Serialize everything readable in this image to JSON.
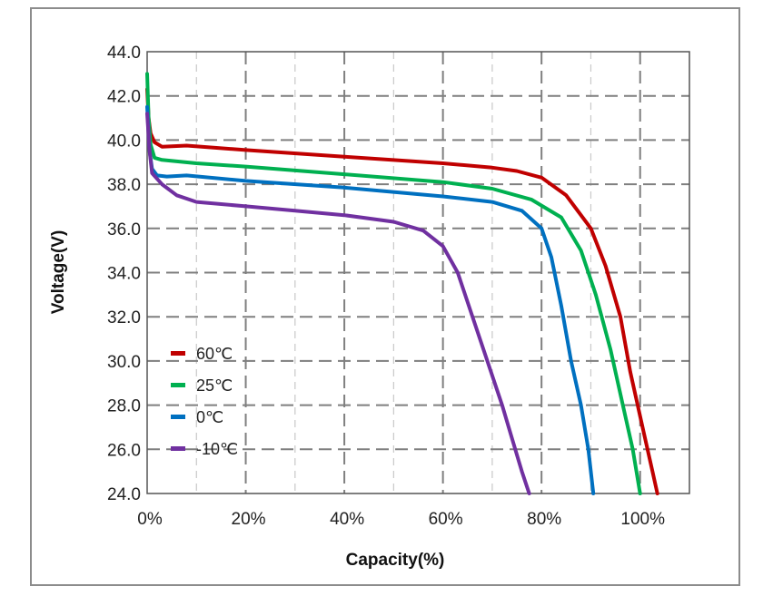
{
  "chart_data": {
    "type": "line",
    "title": "",
    "xlabel": "Capacity(%)",
    "ylabel": "Voltage(V)",
    "xlim": [
      0,
      110
    ],
    "ylim": [
      24,
      44
    ],
    "x_ticks": [
      "0%",
      "20%",
      "40%",
      "60%",
      "80%",
      "100%"
    ],
    "y_ticks": [
      "24.0",
      "26.0",
      "28.0",
      "30.0",
      "32.0",
      "34.0",
      "36.0",
      "38.0",
      "40.0",
      "42.0",
      "44.0"
    ],
    "grid": true,
    "legend_position": "lower-left",
    "series": [
      {
        "name": "60℃",
        "color": "#c00000",
        "points": [
          [
            0,
            42.3
          ],
          [
            0.3,
            41.0
          ],
          [
            0.7,
            40.3
          ],
          [
            1.5,
            39.9
          ],
          [
            3,
            39.7
          ],
          [
            8,
            39.75
          ],
          [
            20,
            39.55
          ],
          [
            40,
            39.25
          ],
          [
            60,
            38.95
          ],
          [
            70,
            38.75
          ],
          [
            75,
            38.6
          ],
          [
            80,
            38.3
          ],
          [
            85,
            37.5
          ],
          [
            90,
            36.0
          ],
          [
            93,
            34.3
          ],
          [
            96,
            32.0
          ],
          [
            98,
            29.5
          ],
          [
            100.5,
            27.0
          ],
          [
            102.5,
            25.0
          ],
          [
            103.5,
            24.0
          ]
        ]
      },
      {
        "name": "25℃",
        "color": "#00b050",
        "points": [
          [
            0,
            43.0
          ],
          [
            0.3,
            41.0
          ],
          [
            0.7,
            39.8
          ],
          [
            1.5,
            39.2
          ],
          [
            3,
            39.1
          ],
          [
            10,
            38.95
          ],
          [
            20,
            38.8
          ],
          [
            40,
            38.45
          ],
          [
            60,
            38.1
          ],
          [
            70,
            37.8
          ],
          [
            78,
            37.3
          ],
          [
            84,
            36.5
          ],
          [
            88,
            35.0
          ],
          [
            91,
            33.0
          ],
          [
            94,
            30.5
          ],
          [
            96.5,
            28.0
          ],
          [
            98.5,
            26.0
          ],
          [
            100,
            24.0
          ]
        ]
      },
      {
        "name": "0℃",
        "color": "#0070c0",
        "points": [
          [
            0,
            41.5
          ],
          [
            0.5,
            39.5
          ],
          [
            1,
            38.7
          ],
          [
            2,
            38.4
          ],
          [
            4,
            38.35
          ],
          [
            8,
            38.4
          ],
          [
            20,
            38.15
          ],
          [
            40,
            37.85
          ],
          [
            60,
            37.45
          ],
          [
            70,
            37.2
          ],
          [
            76,
            36.8
          ],
          [
            80,
            36.0
          ],
          [
            82,
            34.7
          ],
          [
            84,
            32.5
          ],
          [
            86,
            30.0
          ],
          [
            88,
            28.0
          ],
          [
            89.5,
            26.0
          ],
          [
            90.5,
            24.0
          ]
        ]
      },
      {
        "name": "-10℃",
        "color": "#7030a0",
        "points": [
          [
            0,
            41.2
          ],
          [
            0.5,
            39.5
          ],
          [
            1,
            38.5
          ],
          [
            3,
            38.0
          ],
          [
            6,
            37.5
          ],
          [
            10,
            37.2
          ],
          [
            20,
            37.0
          ],
          [
            30,
            36.8
          ],
          [
            40,
            36.6
          ],
          [
            50,
            36.3
          ],
          [
            56,
            35.9
          ],
          [
            60,
            35.2
          ],
          [
            63,
            34.0
          ],
          [
            66,
            32.0
          ],
          [
            69,
            30.0
          ],
          [
            72,
            28.0
          ],
          [
            74,
            26.5
          ],
          [
            76,
            25.0
          ],
          [
            77.5,
            24.0
          ]
        ]
      }
    ]
  }
}
